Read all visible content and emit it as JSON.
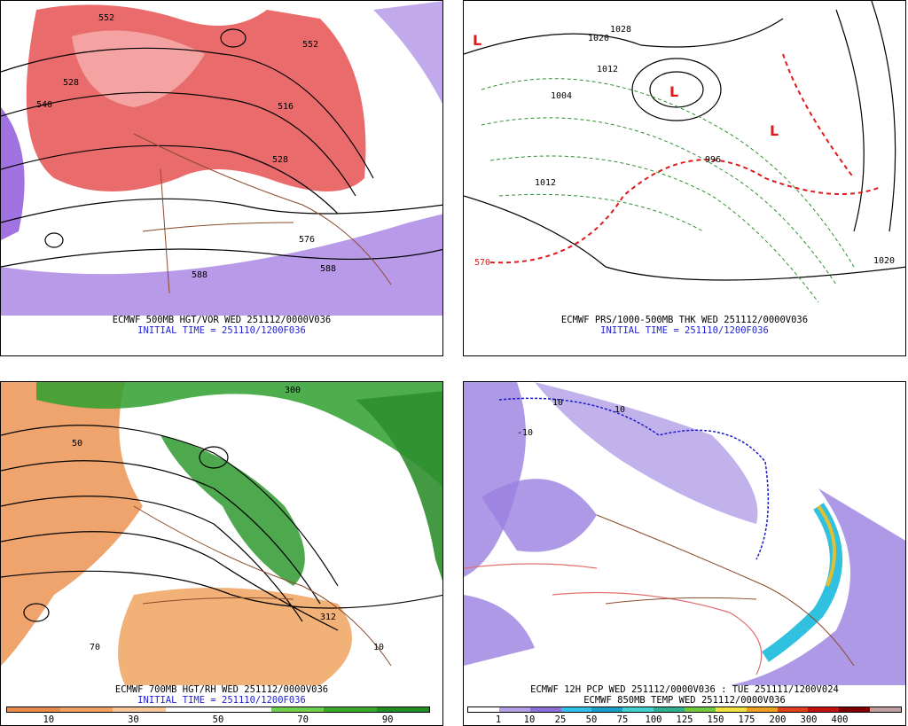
{
  "panels": [
    {
      "id": "p1",
      "line1": "ECMWF 500MB HGT/VOR WED 251112/0000V036",
      "line2": "INITIAL TIME = 251110/1200F036",
      "labels": [
        "552",
        "528",
        "540",
        "552",
        "576",
        "588",
        "588",
        "516",
        "528"
      ]
    },
    {
      "id": "p2",
      "line1": "ECMWF PRS/1000-500MB THK WED 251112/0000V036",
      "line2": "INITIAL TIME = 251110/1200F036",
      "labels": [
        "1020",
        "1028",
        "1012",
        "1004",
        "996",
        "1012",
        "1020",
        "570",
        "L",
        "L",
        "L"
      ]
    },
    {
      "id": "p3",
      "line1": "ECMWF 700MB HGT/RH WED 251112/0000V036",
      "line2": "INITIAL TIME = 251110/1200F036",
      "labels": [
        "300",
        "50",
        "312",
        "10",
        "70"
      ],
      "legend": {
        "colors": [
          "#e88a4a",
          "#f0a060",
          "#f7c79a",
          "#ffffff",
          "#ffffff",
          "#6fcf4f",
          "#3aa82a",
          "#1f8f1f"
        ],
        "ticks": [
          "10",
          "30",
          "50",
          "70",
          "90"
        ]
      }
    },
    {
      "id": "p4",
      "line1": "ECMWF 12H PCP WED 251112/0000V036 : TUE 251111/1200V024",
      "line2": "ECMWF 850MB TEMP WED 251112/0000V036",
      "labels": [
        "10",
        "10",
        "-10"
      ],
      "legend": {
        "colors": [
          "#ffffff",
          "#b3a0e6",
          "#8c6fd9",
          "#33c0e6",
          "#1aa0c8",
          "#40d0d0",
          "#30b090",
          "#70c840",
          "#f0e040",
          "#f0a020",
          "#e04020",
          "#c01010",
          "#800000",
          "#c0a0a0"
        ],
        "ticks": [
          "1",
          "10",
          "25",
          "50",
          "75",
          "100",
          "125",
          "150",
          "175",
          "200",
          "300",
          "400"
        ]
      }
    }
  ]
}
